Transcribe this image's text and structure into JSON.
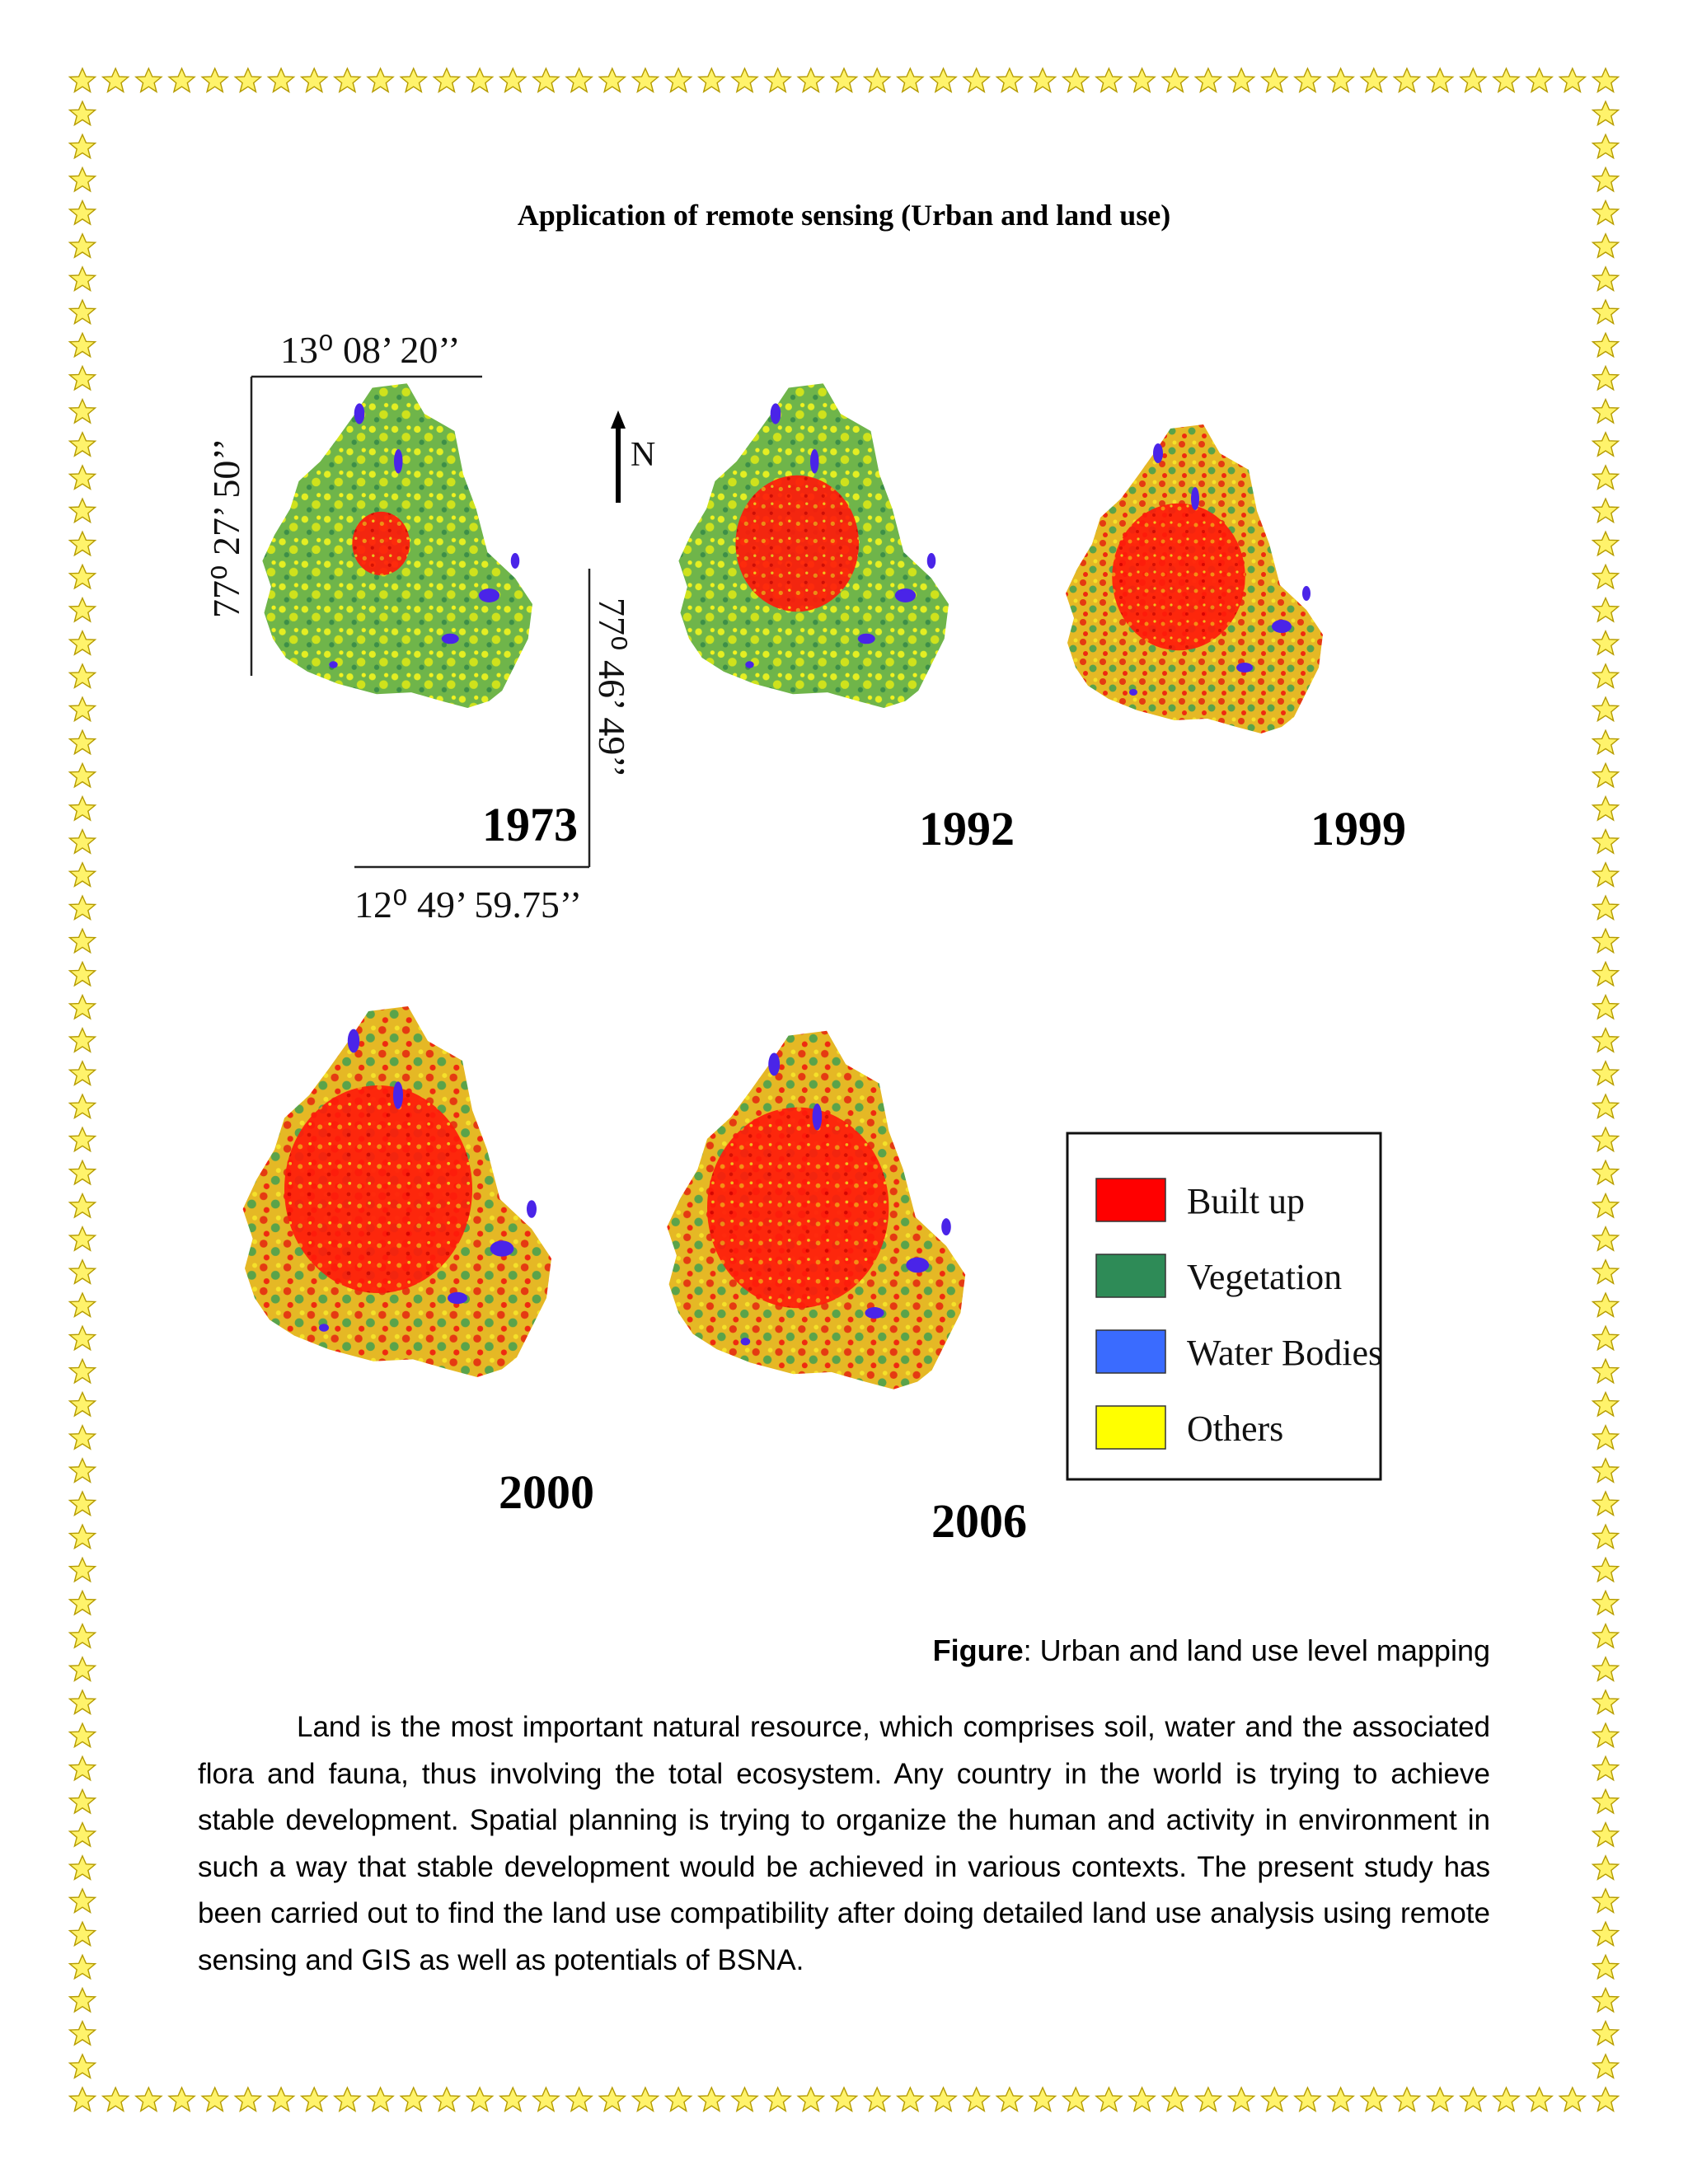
{
  "title": "Application of remote sensing (Urban and land use)",
  "maps": [
    {
      "year": "1973"
    },
    {
      "year": "1992"
    },
    {
      "year": "1999"
    },
    {
      "year": "2000"
    },
    {
      "year": "2006"
    }
  ],
  "coordinates": {
    "top": "13⁰ 08’ 20’’",
    "left": "77⁰ 27’ 50’’",
    "right": "77⁰ 46’ 49’’",
    "bottom": "12⁰ 49’ 59.75’’"
  },
  "north_label": "N",
  "legend": [
    {
      "label": "Built up",
      "color": "#ff0000"
    },
    {
      "label": "Vegetation",
      "color": "#2e8b57"
    },
    {
      "label": "Water Bodies",
      "color": "#3a6bff"
    },
    {
      "label": "Others",
      "color": "#ffff00"
    }
  ],
  "caption": {
    "bold": "Figure",
    "text": ": Urban and land use level mapping"
  },
  "paragraph": "Land is the most important natural resource, which comprises soil, water and the associated flora and fauna, thus involving the total ecosystem. Any country in the world is trying to achieve stable development. Spatial planning is trying to organize the human and activity in environment in such a way that stable development would be achieved in various contexts. The present study has been carried out to find the land use compatibility after doing detailed land use analysis using remote sensing and GIS as well as potentials of BSNA."
}
